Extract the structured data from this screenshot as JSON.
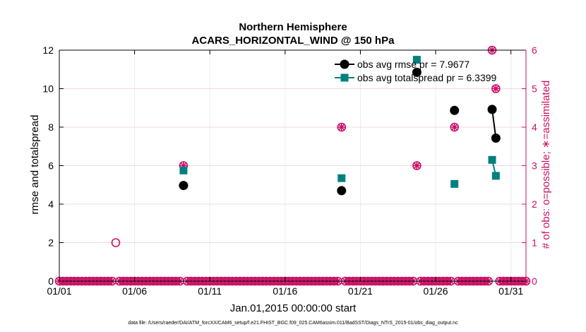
{
  "chart_data": {
    "type": "line",
    "title": [
      "Northern Hemisphere",
      "ACARS_HORIZONTAL_WIND @ 150 hPa"
    ],
    "xlabel": "Jan.01,2015 00:00:00 start",
    "ylabel_left": "rmse and totalspread",
    "ylabel_right": "# of obs: o=possible; ∗=assimilated",
    "x_unit": "day of January 2015",
    "xlim": [
      1,
      32
    ],
    "ylim_left": [
      0,
      12
    ],
    "ylim_right": [
      0,
      6
    ],
    "x_ticks": [
      {
        "value": 1,
        "label": "01/01"
      },
      {
        "value": 6,
        "label": "01/06"
      },
      {
        "value": 11,
        "label": "01/11"
      },
      {
        "value": 16,
        "label": "01/16"
      },
      {
        "value": 21,
        "label": "01/21"
      },
      {
        "value": 26,
        "label": "01/26"
      },
      {
        "value": 31,
        "label": "01/31"
      }
    ],
    "y_ticks_left": [
      "0",
      "2",
      "4",
      "6",
      "8",
      "10",
      "12"
    ],
    "y_ticks_right": [
      "0",
      "1",
      "2",
      "3",
      "4",
      "5",
      "6"
    ],
    "grid": true,
    "legend_position": "top-right",
    "series": [
      {
        "name": "obs avg rmse pr = 7.9677",
        "axis": "left",
        "color": "#000000",
        "marker": "circle",
        "points": [
          [
            9.25,
            4.97
          ],
          [
            19.75,
            4.7
          ],
          [
            24.75,
            10.85
          ],
          [
            27.25,
            8.87
          ],
          [
            29.75,
            8.92
          ],
          [
            30.0,
            7.43
          ]
        ],
        "segments": [
          [
            [
              29.75,
              8.92
            ],
            [
              30.0,
              7.43
            ]
          ]
        ]
      },
      {
        "name": "obs avg totalspread pr = 6.3399",
        "axis": "left",
        "color": "#008080",
        "marker": "square",
        "points": [
          [
            9.25,
            5.75
          ],
          [
            19.75,
            5.35
          ],
          [
            24.75,
            11.5
          ],
          [
            27.25,
            5.05
          ],
          [
            29.75,
            6.3
          ],
          [
            30.0,
            5.47
          ]
        ],
        "segments": [
          [
            [
              29.75,
              6.3
            ],
            [
              30.0,
              5.47
            ]
          ]
        ]
      }
    ],
    "obs_counts": {
      "axis": "right",
      "color": "#cc1166",
      "step_days": 0.25,
      "nonzero": [
        {
          "x": 4.75,
          "possible": 1,
          "assimilated": 0
        },
        {
          "x": 9.25,
          "possible": 3,
          "assimilated": 3
        },
        {
          "x": 19.75,
          "possible": 4,
          "assimilated": 4
        },
        {
          "x": 24.75,
          "possible": 3,
          "assimilated": 3
        },
        {
          "x": 27.25,
          "possible": 4,
          "assimilated": 4
        },
        {
          "x": 29.75,
          "possible": 6,
          "assimilated": 6
        },
        {
          "x": 30.0,
          "possible": 5,
          "assimilated": 5
        }
      ],
      "zero_range": [
        1,
        32
      ]
    },
    "footnote": "data file: /Users/raeder/DAI/ATM_forcXX/CAM6_setup/f.e21.FHIST_BGC.f09_025.CAM6assim.011/BadSST/Diags_NTrS_2015-01/obs_diag_output.nc"
  }
}
